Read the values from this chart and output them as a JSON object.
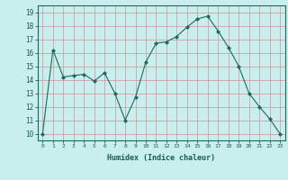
{
  "x": [
    0,
    1,
    2,
    3,
    4,
    5,
    6,
    7,
    8,
    9,
    10,
    11,
    12,
    13,
    14,
    15,
    16,
    17,
    18,
    19,
    20,
    21,
    22,
    23
  ],
  "y": [
    10,
    16.2,
    14.2,
    14.3,
    14.4,
    13.9,
    14.5,
    13.0,
    11.0,
    12.7,
    15.3,
    16.7,
    16.8,
    17.2,
    17.9,
    18.5,
    18.7,
    17.6,
    16.4,
    15.0,
    13.0,
    12.0,
    11.1,
    10.0
  ],
  "line_color": "#1a6b5e",
  "marker": "D",
  "marker_size": 2,
  "bg_color": "#c8eeed",
  "grid_color": "#d4a0a0",
  "xlabel": "Humidex (Indice chaleur)",
  "ylabel_ticks": [
    10,
    11,
    12,
    13,
    14,
    15,
    16,
    17,
    18,
    19
  ],
  "xlim": [
    -0.5,
    23.5
  ],
  "ylim": [
    9.5,
    19.5
  ],
  "xtick_labels": [
    "0",
    "1",
    "2",
    "3",
    "4",
    "5",
    "6",
    "7",
    "8",
    "9",
    "10",
    "11",
    "12",
    "13",
    "14",
    "15",
    "16",
    "17",
    "18",
    "19",
    "20",
    "21",
    "22",
    "23"
  ]
}
